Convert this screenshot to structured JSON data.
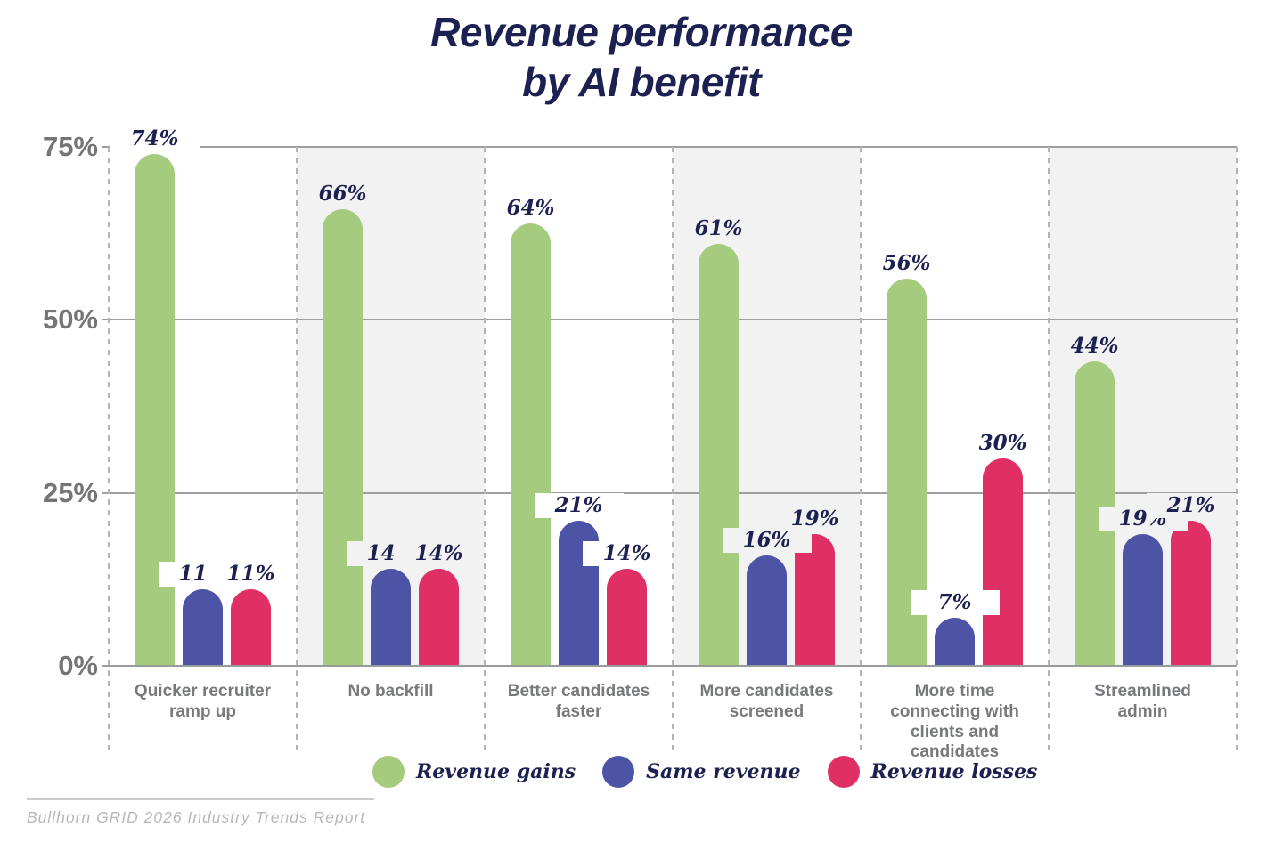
{
  "title": {
    "line1": "Revenue performance",
    "line2": "by AI benefit"
  },
  "chart_data": {
    "type": "bar",
    "title": "Revenue performance by AI benefit",
    "categories": [
      "Quicker recruiter ramp up",
      "No backfill",
      "Better candidates faster",
      "More candidates screened",
      "More time connecting with clients and candidates",
      "Streamlined admin"
    ],
    "category_lines": [
      [
        "Quicker recruiter",
        "ramp up"
      ],
      [
        "No backfill"
      ],
      [
        "Better candidates",
        "faster"
      ],
      [
        "More candidates",
        "screened"
      ],
      [
        "More time",
        "connecting with",
        "clients and",
        "candidates"
      ],
      [
        "Streamlined",
        "admin"
      ]
    ],
    "series": [
      {
        "name": "Revenue gains",
        "color_key": "green",
        "values": [
          74,
          66,
          64,
          61,
          56,
          44
        ]
      },
      {
        "name": "Same revenue",
        "color_key": "blue",
        "values": [
          11,
          14,
          21,
          16,
          7,
          19
        ]
      },
      {
        "name": "Revenue losses",
        "color_key": "pink",
        "values": [
          11,
          14,
          14,
          19,
          30,
          21
        ]
      }
    ],
    "value_suffix": "%",
    "ylim": [
      0,
      75
    ],
    "y_ticks": [
      {
        "label": "75%",
        "value": 75
      },
      {
        "label": "50%",
        "value": 50
      },
      {
        "label": "25%",
        "value": 25
      },
      {
        "label": "0%",
        "value": 0
      }
    ],
    "grid": true,
    "striped_columns": [
      1,
      3,
      5
    ],
    "legend_position": "bottom"
  },
  "colors": {
    "green": "#a5cb7e",
    "blue": "#4d53a5",
    "pink": "#e02f64",
    "navy": "#1c2152",
    "stripe": "#f2f2f2",
    "gridline": "#9e9e9e",
    "axis_text": "#757575",
    "category_text": "#77797c"
  },
  "footer": {
    "source": "Bullhorn GRID 2026 Industry Trends Report"
  }
}
